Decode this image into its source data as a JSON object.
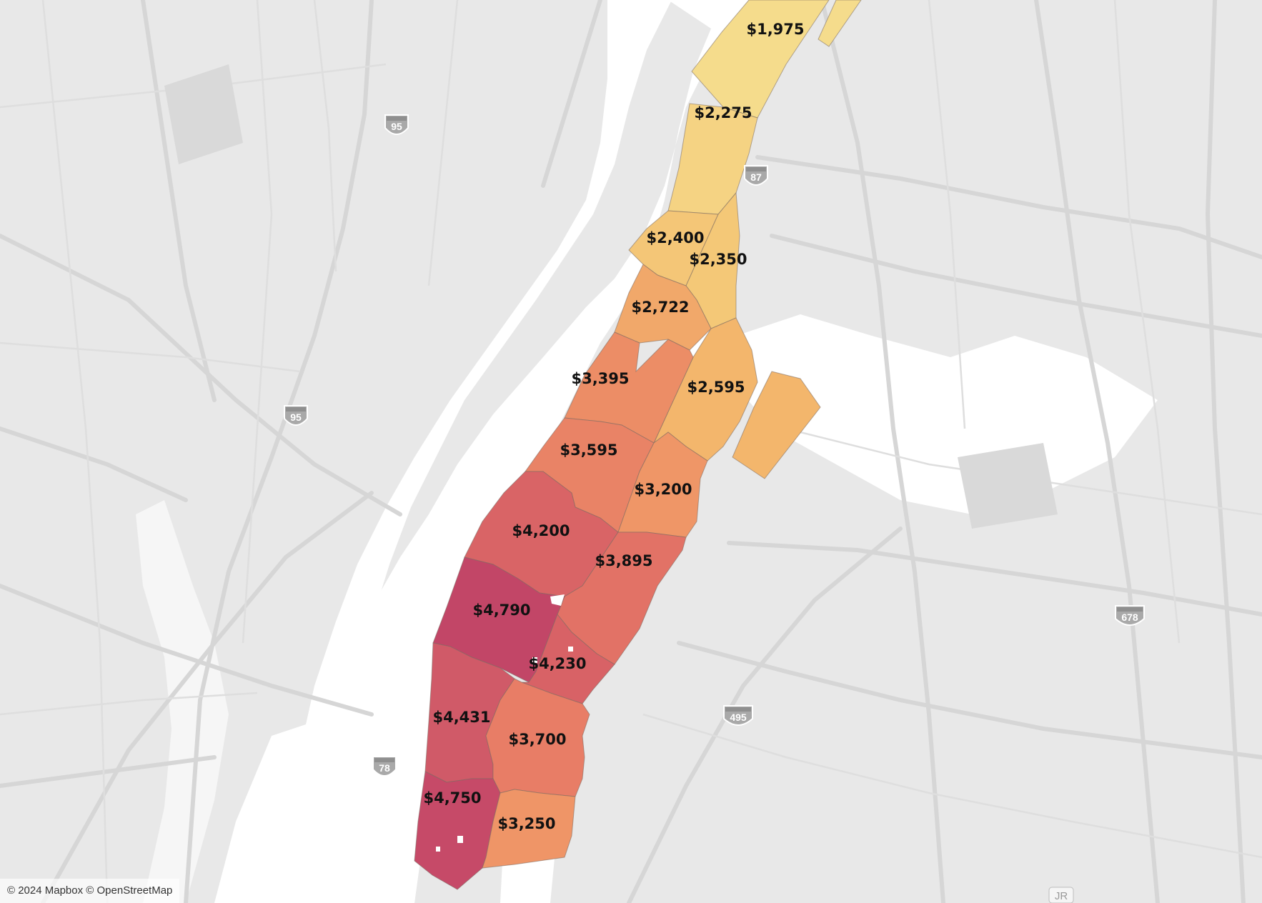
{
  "attribution": "© 2024 Mapbox © OpenStreetMap",
  "colors": {
    "c1975": "#f5dc8c",
    "c2275": "#f5d383",
    "c2350": "#f4c877",
    "c2400": "#f4c677",
    "c2595": "#f3b66c",
    "c2722": "#f1a86a",
    "c3200": "#ef9667",
    "c3250": "#ef9567",
    "c3395": "#ec8d66",
    "c3595": "#e98366",
    "c3700": "#e87d66",
    "c3895": "#e27266",
    "c4200": "#d96466",
    "c4230": "#d86266",
    "c4431": "#d05a68",
    "c4750": "#c64a68",
    "c4790": "#c24667"
  },
  "neighborhoods": [
    {
      "label": "$1,975",
      "value": 1975
    },
    {
      "label": "$2,275",
      "value": 2275
    },
    {
      "label": "$2,400",
      "value": 2400
    },
    {
      "label": "$2,350",
      "value": 2350
    },
    {
      "label": "$2,722",
      "value": 2722
    },
    {
      "label": "$3,395",
      "value": 3395
    },
    {
      "label": "$2,595",
      "value": 2595
    },
    {
      "label": "$3,595",
      "value": 3595
    },
    {
      "label": "$3,200",
      "value": 3200
    },
    {
      "label": "$4,200",
      "value": 4200
    },
    {
      "label": "$3,895",
      "value": 3895
    },
    {
      "label": "$4,790",
      "value": 4790
    },
    {
      "label": "$4,230",
      "value": 4230
    },
    {
      "label": "$4,431",
      "value": 4431
    },
    {
      "label": "$3,700",
      "value": 3700
    },
    {
      "label": "$4,750",
      "value": 4750
    },
    {
      "label": "$3,250",
      "value": 3250
    }
  ],
  "shields": [
    {
      "label": "95"
    },
    {
      "label": "95"
    },
    {
      "label": "87"
    },
    {
      "label": "678"
    },
    {
      "label": "495"
    },
    {
      "label": "78"
    }
  ],
  "badge": {
    "label": "JR"
  }
}
